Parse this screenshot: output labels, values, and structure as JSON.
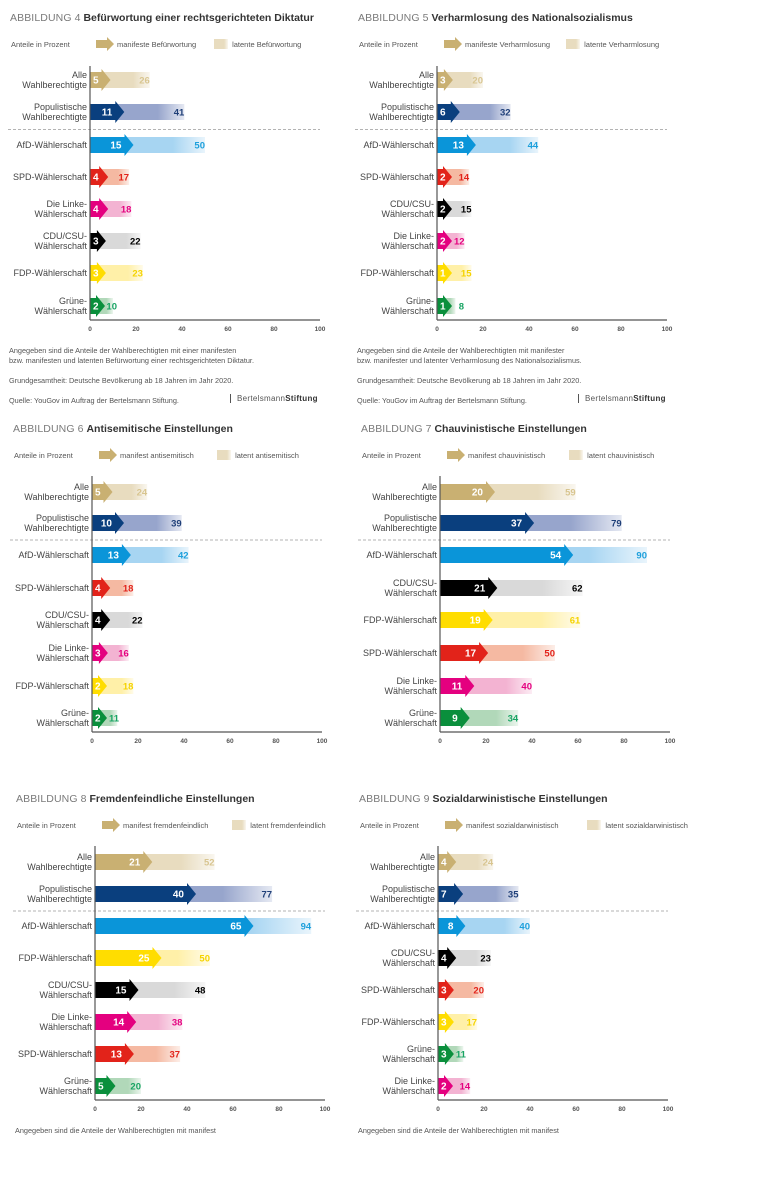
{
  "common": {
    "unit_label": "Anteile in Prozent",
    "grundgesamtheit": "Grundgesamtheit: Deutsche Bevölkerung ab 18 Jahren im Jahr 2020.",
    "quelle": "Quelle: YouGov im Auftrag der Bertelsmann Stiftung.",
    "brand_light": "Bertelsmann",
    "brand_bold": "Stiftung"
  },
  "colors": {
    "Alle Wahlberechtigte": {
      "manifest": "#c9b072",
      "latent": "#e8dcbf",
      "label": "#d8c590"
    },
    "Populistische Wahlberechtigte": {
      "manifest": "#0a3f7e",
      "latent": "#97a5cc",
      "label": "#1f3f78"
    },
    "AfD-Wählerschaft": {
      "manifest": "#0a95d9",
      "latent": "#a7d5f2",
      "label": "#1ea0dc"
    },
    "SPD-Wählerschaft": {
      "manifest": "#e2231a",
      "latent": "#f5b9a2",
      "label": "#e2231a"
    },
    "Die Linke-Wählerschaft": {
      "manifest": "#e4007f",
      "latent": "#f3b3d2",
      "label": "#e4007f"
    },
    "CDU/CSU-Wählerschaft": {
      "manifest": "#000000",
      "latent": "#d9d9d9",
      "label": "#000000"
    },
    "FDP-Wählerschaft": {
      "manifest": "#ffdd00",
      "latent": "#fff0a8",
      "label": "#f5d300"
    },
    "Grüne-Wählerschaft": {
      "manifest": "#0a8f3c",
      "latent": "#b1d8b9",
      "label": "#18a463"
    }
  },
  "chart_data": [
    {
      "type": "bar",
      "figure_number": "ABBILDUNG 4",
      "title": "Befürwortung einer rechtsgerichteten Diktatur",
      "legend": [
        "manifeste Befürwortung",
        "latente Befürwortung"
      ],
      "categories": [
        "Alle|Wahlberechtigte",
        "Populistische|Wahlberechtigte",
        "AfD-Wählerschaft",
        "SPD-Wählerschaft",
        "Die Linke-|Wählerschaft",
        "CDU/CSU-|Wählerschaft",
        "FDP-Wählerschaft",
        "Grüne-|Wählerschaft"
      ],
      "keys": [
        "Alle Wahlberechtigte",
        "Populistische Wahlberechtigte",
        "AfD-Wählerschaft",
        "SPD-Wählerschaft",
        "Die Linke-Wählerschaft",
        "CDU/CSU-Wählerschaft",
        "FDP-Wählerschaft",
        "Grüne-Wählerschaft"
      ],
      "series": [
        {
          "name": "manifest",
          "values": [
            5,
            11,
            15,
            4,
            4,
            3,
            3,
            2
          ]
        },
        {
          "name": "manifest und latent",
          "values": [
            26,
            41,
            50,
            17,
            18,
            22,
            23,
            10
          ]
        }
      ],
      "xlim": [
        0,
        100
      ],
      "xticks": [
        "0",
        "20",
        "40",
        "60",
        "80",
        "100"
      ],
      "separator_after": 1,
      "notes": [
        "Angegeben sind die Anteile der Wahlberechtigten mit einer manifesten",
        "bzw. manifesten und latenten Befürwortung einer rechtsgerichteten Diktatur."
      ],
      "show_footer": true
    },
    {
      "type": "bar",
      "figure_number": "ABBILDUNG 5",
      "title": "Verharmlosung des Nationalsozialismus",
      "legend": [
        "manifeste Verharmlosung",
        "latente Verharmlosung"
      ],
      "categories": [
        "Alle|Wahlberechtigte",
        "Populistische|Wahlberechtigte",
        "AfD-Wählerschaft",
        "SPD-Wählerschaft",
        "CDU/CSU-|Wählerschaft",
        "Die Linke-|Wählerschaft",
        "FDP-Wählerschaft",
        "Grüne-|Wählerschaft"
      ],
      "keys": [
        "Alle Wahlberechtigte",
        "Populistische Wahlberechtigte",
        "AfD-Wählerschaft",
        "SPD-Wählerschaft",
        "CDU/CSU-Wählerschaft",
        "Die Linke-Wählerschaft",
        "FDP-Wählerschaft",
        "Grüne-Wählerschaft"
      ],
      "series": [
        {
          "name": "manifest",
          "values": [
            3,
            6,
            13,
            2,
            2,
            2,
            1,
            1
          ]
        },
        {
          "name": "manifest und latent",
          "values": [
            20,
            32,
            44,
            14,
            15,
            12,
            15,
            8
          ]
        }
      ],
      "xlim": [
        0,
        100
      ],
      "xticks": [
        "0",
        "20",
        "40",
        "60",
        "80",
        "100"
      ],
      "separator_after": 1,
      "notes": [
        "Angegeben sind die Anteile der Wahlberechtigten mit manifester",
        "bzw. manifester und latenter Verharmlosung des Nationalsozialismus."
      ],
      "show_footer": true
    },
    {
      "type": "bar",
      "figure_number": "ABBILDUNG 6",
      "title": "Antisemitische Einstellungen",
      "legend": [
        "manifest antisemitisch",
        "latent antisemitisch"
      ],
      "categories": [
        "Alle|Wahlberechtigte",
        "Populistische|Wahlberechtigte",
        "AfD-Wählerschaft",
        "SPD-Wählerschaft",
        "CDU/CSU-|Wählerschaft",
        "Die Linke-|Wählerschaft",
        "FDP-Wählerschaft",
        "Grüne-|Wählerschaft"
      ],
      "keys": [
        "Alle Wahlberechtigte",
        "Populistische Wahlberechtigte",
        "AfD-Wählerschaft",
        "SPD-Wählerschaft",
        "CDU/CSU-Wählerschaft",
        "Die Linke-Wählerschaft",
        "FDP-Wählerschaft",
        "Grüne-Wählerschaft"
      ],
      "series": [
        {
          "name": "manifest",
          "values": [
            5,
            10,
            13,
            4,
            4,
            3,
            2,
            2
          ]
        },
        {
          "name": "manifest und latent",
          "values": [
            24,
            39,
            42,
            18,
            22,
            16,
            18,
            11
          ]
        }
      ],
      "xlim": [
        0,
        100
      ],
      "xticks": [
        "0",
        "20",
        "40",
        "60",
        "80",
        "100"
      ],
      "separator_after": 1,
      "notes": [],
      "show_footer": false
    },
    {
      "type": "bar",
      "figure_number": "ABBILDUNG 7",
      "title": "Chauvinistische Einstellungen",
      "legend": [
        "manifest chauvinistisch",
        "latent chauvinistisch"
      ],
      "categories": [
        "Alle|Wahlberechtigte",
        "Populistische|Wahlberechtigte",
        "AfD-Wählerschaft",
        "CDU/CSU-|Wählerschaft",
        "FDP-Wählerschaft",
        "SPD-Wählerschaft",
        "Die Linke-|Wählerschaft",
        "Grüne-|Wählerschaft"
      ],
      "keys": [
        "Alle Wahlberechtigte",
        "Populistische Wahlberechtigte",
        "AfD-Wählerschaft",
        "CDU/CSU-Wählerschaft",
        "FDP-Wählerschaft",
        "SPD-Wählerschaft",
        "Die Linke-Wählerschaft",
        "Grüne-Wählerschaft"
      ],
      "series": [
        {
          "name": "manifest",
          "values": [
            20,
            37,
            54,
            21,
            19,
            17,
            11,
            9
          ]
        },
        {
          "name": "manifest und latent",
          "values": [
            59,
            79,
            90,
            62,
            61,
            50,
            40,
            34
          ]
        }
      ],
      "xlim": [
        0,
        100
      ],
      "xticks": [
        "0",
        "20",
        "40",
        "60",
        "80",
        "100"
      ],
      "separator_after": 1,
      "notes": [],
      "show_footer": false
    },
    {
      "type": "bar",
      "figure_number": "ABBILDUNG 8",
      "title": "Fremdenfeindliche Einstellungen",
      "legend": [
        "manifest fremdenfeindlich",
        "latent fremdenfeindlich"
      ],
      "categories": [
        "Alle|Wahlberechtigte",
        "Populistische|Wahlberechtigte",
        "AfD-Wählerschaft",
        "FDP-Wählerschaft",
        "CDU/CSU-|Wählerschaft",
        "Die Linke-|Wählerschaft",
        "SPD-Wählerschaft",
        "Grüne-|Wählerschaft"
      ],
      "keys": [
        "Alle Wahlberechtigte",
        "Populistische Wahlberechtigte",
        "AfD-Wählerschaft",
        "FDP-Wählerschaft",
        "CDU/CSU-Wählerschaft",
        "Die Linke-Wählerschaft",
        "SPD-Wählerschaft",
        "Grüne-Wählerschaft"
      ],
      "series": [
        {
          "name": "manifest",
          "values": [
            21,
            40,
            65,
            25,
            15,
            14,
            13,
            5
          ]
        },
        {
          "name": "manifest und latent",
          "values": [
            52,
            77,
            94,
            50,
            48,
            38,
            37,
            20
          ]
        }
      ],
      "xlim": [
        0,
        100
      ],
      "xticks": [
        "0",
        "20",
        "40",
        "60",
        "80",
        "100"
      ],
      "separator_after": 1,
      "notes": [
        "Angegeben sind die Anteile der Wahlberechtigten mit manifest"
      ],
      "show_footer": false
    },
    {
      "type": "bar",
      "figure_number": "ABBILDUNG 9",
      "title": "Sozialdarwinistische Einstellungen",
      "legend": [
        "manifest sozialdarwinistisch",
        "latent sozialdarwinistisch"
      ],
      "categories": [
        "Alle|Wahlberechtigte",
        "Populistische|Wahlberechtigte",
        "AfD-Wählerschaft",
        "CDU/CSU-|Wählerschaft",
        "SPD-Wählerschaft",
        "FDP-Wählerschaft",
        "Grüne-|Wählerschaft",
        "Die Linke-|Wählerschaft"
      ],
      "keys": [
        "Alle Wahlberechtigte",
        "Populistische Wahlberechtigte",
        "AfD-Wählerschaft",
        "CDU/CSU-Wählerschaft",
        "SPD-Wählerschaft",
        "FDP-Wählerschaft",
        "Grüne-Wählerschaft",
        "Die Linke-Wählerschaft"
      ],
      "series": [
        {
          "name": "manifest",
          "values": [
            4,
            7,
            8,
            4,
            3,
            3,
            3,
            2
          ]
        },
        {
          "name": "manifest und latent",
          "values": [
            24,
            35,
            40,
            23,
            20,
            17,
            11,
            14
          ]
        }
      ],
      "xlim": [
        0,
        100
      ],
      "xticks": [
        "0",
        "20",
        "40",
        "60",
        "80",
        "100"
      ],
      "separator_after": 1,
      "notes": [
        "Angegeben sind die Anteile der Wahlberechtigten mit manifest"
      ],
      "show_footer": false
    }
  ]
}
